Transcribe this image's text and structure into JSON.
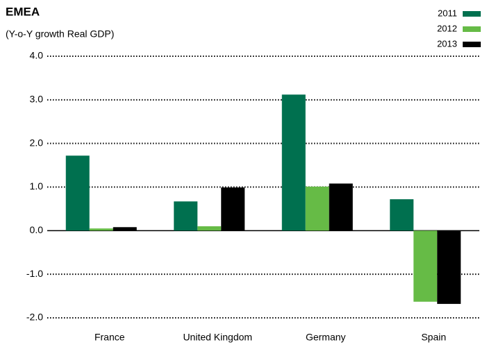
{
  "chart_data": {
    "type": "bar",
    "title": "EMEA",
    "subtitle": "(Y-o-Y growth Real GDP)",
    "categories": [
      "France",
      "United Kingdom",
      "Germany",
      "Spain"
    ],
    "series": [
      {
        "name": "2011",
        "color": "#00704f",
        "values": [
          1.72,
          0.67,
          3.12,
          0.72
        ]
      },
      {
        "name": "2012",
        "color": "#66bb46",
        "values": [
          0.05,
          0.1,
          1.01,
          -1.63
        ]
      },
      {
        "name": "2013",
        "color": "#000000",
        "values": [
          0.08,
          0.99,
          1.08,
          -1.68
        ]
      }
    ],
    "ylim": [
      -2,
      4
    ],
    "yticks": [
      {
        "value": -2,
        "label": "-2.0"
      },
      {
        "value": -1,
        "label": "-1.0"
      },
      {
        "value": 0,
        "label": "0.0"
      },
      {
        "value": 1,
        "label": "1.0"
      },
      {
        "value": 2,
        "label": "2.0"
      },
      {
        "value": 3,
        "label": "3.0"
      },
      {
        "value": 4,
        "label": "4.0"
      }
    ],
    "grid": true,
    "legend": "top-right"
  }
}
